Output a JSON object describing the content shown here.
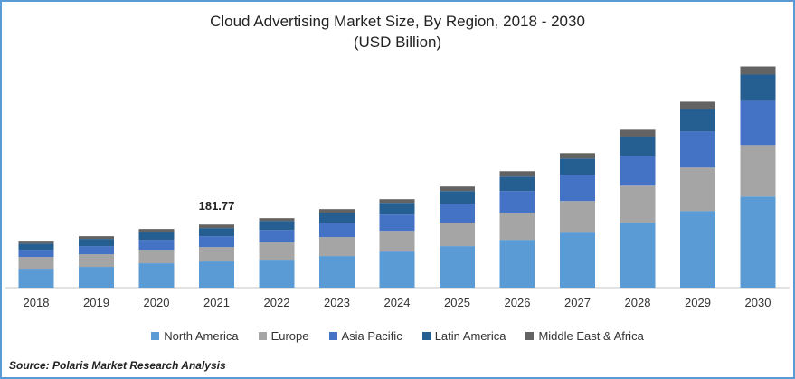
{
  "chart_data": {
    "type": "bar",
    "stacked": true,
    "title": "Cloud Advertising Market Size, By Region, 2018 - 2030",
    "subtitle": "(USD Billion)",
    "xlabel": "",
    "ylabel": "",
    "ylim": [
      0,
      680
    ],
    "grid": false,
    "legend_position": "bottom",
    "categories": [
      "2018",
      "2019",
      "2020",
      "2021",
      "2022",
      "2023",
      "2024",
      "2025",
      "2026",
      "2027",
      "2028",
      "2029",
      "2030"
    ],
    "series": [
      {
        "name": "North America",
        "color": "#5B9BD5",
        "values": [
          54.6,
          59.8,
          70.2,
          75.4,
          80.6,
          91.0,
          104.0,
          119.6,
          137.8,
          158.6,
          187.2,
          221.0,
          262.6
        ]
      },
      {
        "name": "Europe",
        "color": "#A5A5A5",
        "values": [
          33.8,
          36.4,
          39.0,
          41.6,
          49.4,
          54.6,
          59.8,
          67.6,
          78.0,
          91.0,
          106.6,
          124.8,
          148.2
        ]
      },
      {
        "name": "Asia Pacific",
        "color": "#4472C4",
        "values": [
          20.8,
          23.4,
          28.6,
          31.2,
          36.4,
          41.6,
          46.8,
          54.6,
          62.4,
          75.4,
          85.8,
          104.0,
          127.4
        ]
      },
      {
        "name": "Latin America",
        "color": "#255E91",
        "values": [
          17.4,
          20.8,
          23.4,
          23.4,
          26.0,
          28.6,
          33.8,
          36.4,
          41.6,
          46.8,
          54.6,
          65.0,
          75.4
        ]
      },
      {
        "name": "Middle East & Africa",
        "color": "#636363",
        "values": [
          8.6,
          7.8,
          7.8,
          10.17,
          7.8,
          10.4,
          10.4,
          13.0,
          15.6,
          15.6,
          20.8,
          20.8,
          23.4
        ]
      }
    ],
    "annotations": [
      {
        "category": "2021",
        "text": "181.77"
      }
    ]
  },
  "source": "Source: Polaris  Market Research Analysis"
}
